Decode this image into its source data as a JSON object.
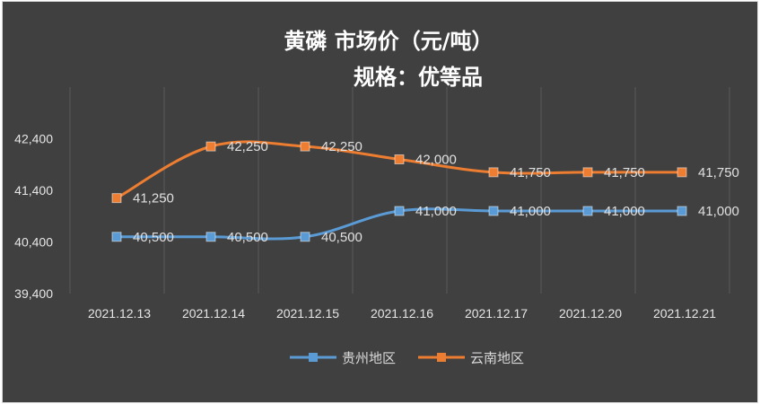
{
  "chart_data": {
    "type": "line",
    "title": "黄磷  市场价（元/吨）",
    "subtitle": "规格：优等品",
    "categories": [
      "2021.12.13",
      "2021.12.14",
      "2021.12.15",
      "2021.12.16",
      "2021.12.17",
      "2021.12.20",
      "2021.12.21"
    ],
    "yticks": [
      "39,400",
      "40,400",
      "41,400",
      "42,400"
    ],
    "ylim": [
      39400,
      43400
    ],
    "grid": "vertical",
    "legend_position": "bottom",
    "series": [
      {
        "name": "贵州地区",
        "color": "#5b9bd5",
        "values": [
          40500,
          40500,
          40500,
          41000,
          41000,
          41000,
          41000
        ],
        "labels": [
          "40,500",
          "40,500",
          "40,500",
          "41,000",
          "41,000",
          "41,000",
          "41,000"
        ]
      },
      {
        "name": "云南地区",
        "color": "#ed7d31",
        "values": [
          41250,
          42250,
          42250,
          42000,
          41750,
          41750,
          41750
        ],
        "labels": [
          "41,250",
          "42,250",
          "42,250",
          "42,000",
          "41,750",
          "41,750",
          "41,750"
        ]
      }
    ]
  }
}
